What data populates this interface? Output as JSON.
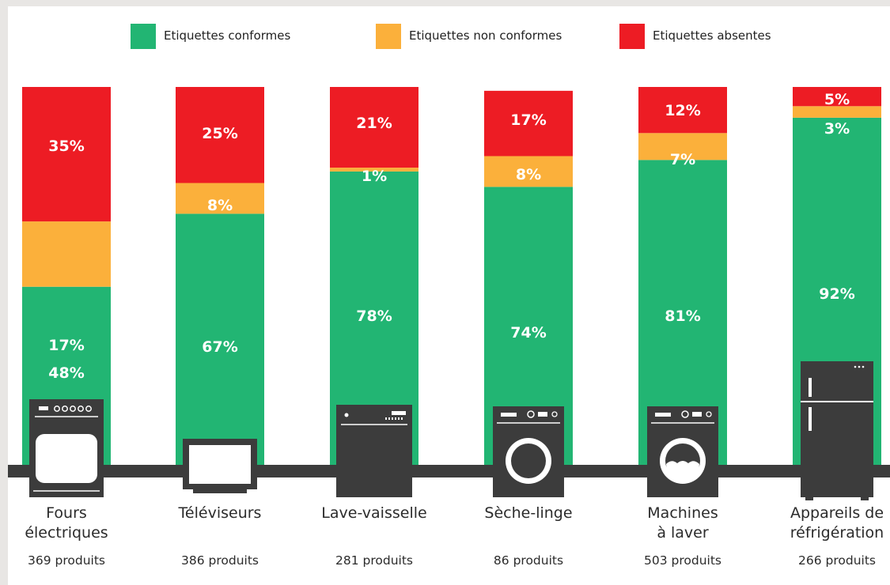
{
  "chart_data": {
    "type": "bar",
    "stacked": true,
    "legend_position": "top",
    "series": [
      {
        "name": "Etiquettes conformes",
        "color": "#22b573",
        "values": [
          48,
          67,
          78,
          74,
          81,
          92
        ]
      },
      {
        "name": "Etiquettes non conformes",
        "color": "#fbb03b",
        "values": [
          17,
          8,
          1,
          8,
          7,
          3
        ]
      },
      {
        "name": "Etiquettes absentes",
        "color": "#ed1c24",
        "values": [
          35,
          25,
          21,
          17,
          12,
          5
        ]
      }
    ],
    "categories": [
      {
        "label_lines": [
          "Fours",
          "électriques"
        ],
        "count": "369 produits",
        "icon": "oven-icon"
      },
      {
        "label_lines": [
          "Téléviseurs"
        ],
        "count": "386 produits",
        "icon": "tv-icon"
      },
      {
        "label_lines": [
          "Lave-vaisselle"
        ],
        "count": "281 produits",
        "icon": "dishwasher-icon"
      },
      {
        "label_lines": [
          "Sèche-linge"
        ],
        "count": "86 produits",
        "icon": "dryer-icon"
      },
      {
        "label_lines": [
          "Machines",
          "à laver"
        ],
        "count": "503 produits",
        "icon": "washing-machine-icon"
      },
      {
        "label_lines": [
          "Appareils de",
          "réfrigération"
        ],
        "count": "266 produits",
        "icon": "fridge-icon"
      }
    ],
    "value_suffix": "%",
    "ylim": [
      0,
      100
    ]
  }
}
